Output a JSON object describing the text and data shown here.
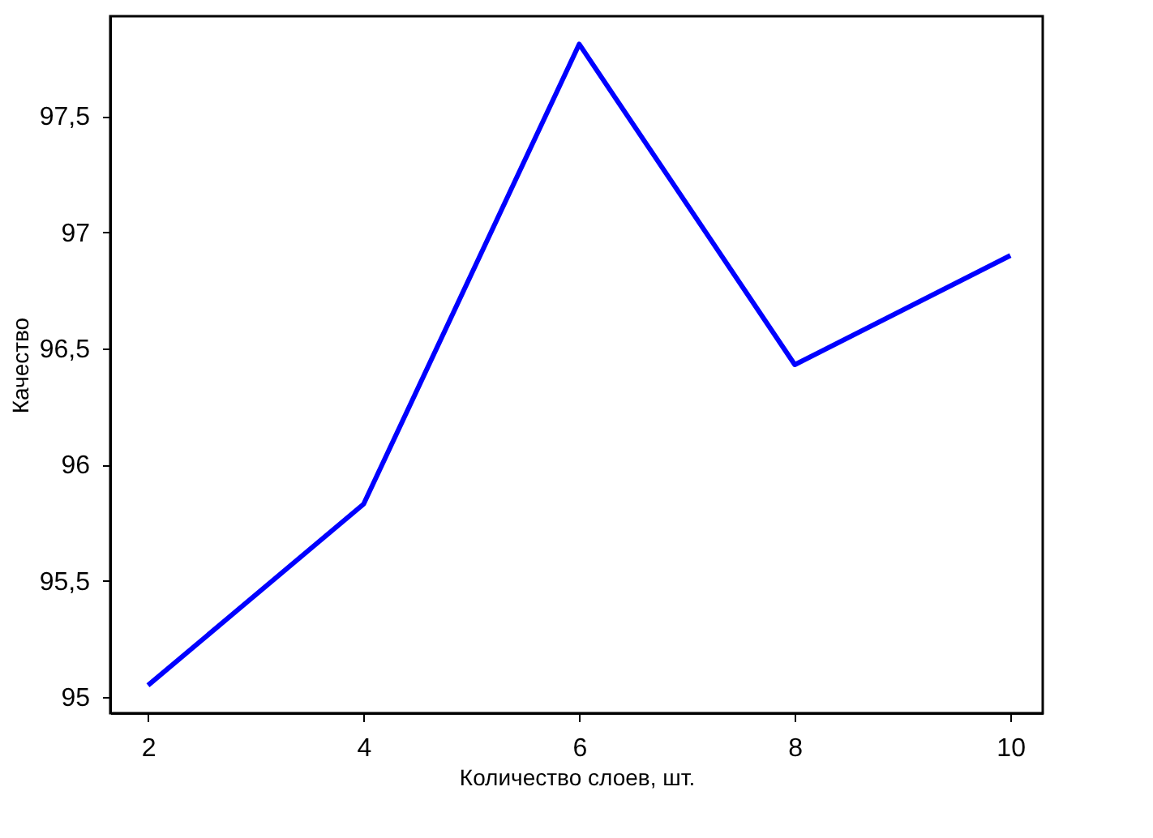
{
  "chart_data": {
    "type": "line",
    "xlabel": "Количество слоев, шт.",
    "ylabel": "Качество",
    "x": [
      2,
      4,
      6,
      8,
      10
    ],
    "series": [
      {
        "color": "#0000ff",
        "values": [
          95.05,
          95.83,
          97.81,
          96.43,
          96.9
        ]
      }
    ],
    "xlim": [
      1.65,
      10.3
    ],
    "xticks": [
      2,
      4,
      6,
      8,
      10
    ],
    "ylim": [
      94.93,
      97.93
    ],
    "yticks": [
      95,
      {
        "value": 95.5,
        "label": "95,5"
      },
      96,
      {
        "value": 96.5,
        "label": "96,5"
      },
      97,
      {
        "value": 97.5,
        "label": "97,5"
      }
    ],
    "grid": false,
    "marker": "none",
    "line_style": "solid"
  }
}
